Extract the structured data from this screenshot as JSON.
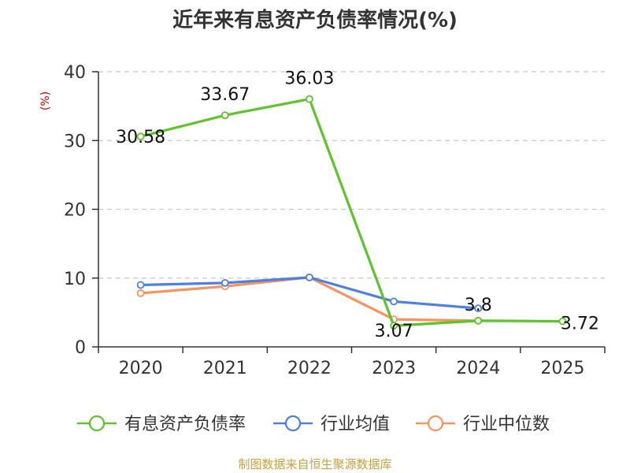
{
  "chart_data": {
    "type": "line",
    "title": "近年来有息资产负债率情况(%)",
    "unit_label": "(%)",
    "categories": [
      "2020",
      "2021",
      "2022",
      "2023",
      "2024",
      "2025"
    ],
    "ylim": [
      0,
      40
    ],
    "yticks": [
      0,
      10,
      20,
      30,
      40
    ],
    "grid": true,
    "legend_position": "bottom",
    "series": [
      {
        "name": "有息资产负债率",
        "color": "#5dc42b",
        "values": [
          30.58,
          33.67,
          36.03,
          3.07,
          3.8,
          3.72
        ],
        "labels": [
          "30.58",
          "33.67",
          "36.03",
          "3.07",
          "3.8",
          "3.72"
        ]
      },
      {
        "name": "行业均值",
        "color": "#4f7fe0",
        "values": [
          9.0,
          9.3,
          10.1,
          6.6,
          5.6,
          null
        ]
      },
      {
        "name": "行业中位数",
        "color": "#f7935e",
        "values": [
          7.8,
          8.8,
          10.1,
          4.0,
          3.8,
          null
        ]
      }
    ]
  },
  "footer": {
    "source": "制图数据来自恒生聚源数据库"
  }
}
